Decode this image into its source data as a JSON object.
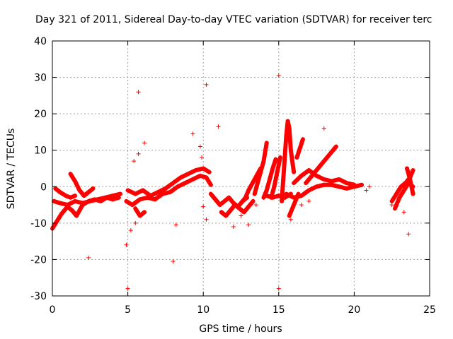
{
  "chart_data": {
    "type": "scatter",
    "title": "Day 321 of 2011, Sidereal Day-to-day VTEC variation (SDTVAR) for receiver terc",
    "xlabel": "GPS time / hours",
    "ylabel": "SDTVAR / TECUs",
    "xlim": [
      0,
      25
    ],
    "ylim": [
      -30,
      40
    ],
    "x_ticks": [
      "0",
      "5",
      "10",
      "15",
      "20",
      "25"
    ],
    "y_ticks": [
      "-30",
      "-20",
      "-10",
      "0",
      "10",
      "20",
      "30",
      "40"
    ],
    "grid": true,
    "marker": "+",
    "color": "#ff0000",
    "series": [
      {
        "name": "SDTVAR",
        "segments": [
          {
            "x": [
              0.0,
              0.3,
              0.6,
              1.0,
              1.3,
              1.6,
              2.0,
              2.4,
              2.8,
              3.2,
              3.6,
              4.0,
              4.4
            ],
            "y": [
              -11.5,
              -9.5,
              -7.5,
              -5.5,
              -6.5,
              -8.0,
              -5.0,
              -4.0,
              -3.5,
              -4.0,
              -3.0,
              -3.5,
              -3.0
            ]
          },
          {
            "x": [
              0.1,
              0.5,
              1.0,
              1.5,
              2.0,
              2.5,
              3.0,
              3.5,
              4.0,
              4.5
            ],
            "y": [
              -4.0,
              -4.5,
              -5.0,
              -4.0,
              -4.5,
              -4.0,
              -3.5,
              -3.0,
              -2.5,
              -2.0
            ]
          },
          {
            "x": [
              1.2,
              1.5,
              1.8,
              2.1,
              2.4,
              2.7
            ],
            "y": [
              3.5,
              1.5,
              -1.0,
              -2.5,
              -1.5,
              -0.5
            ]
          },
          {
            "x": [
              0.2,
              0.5,
              0.9,
              1.2,
              1.5
            ],
            "y": [
              -0.5,
              -1.5,
              -2.5,
              -3.0,
              -2.5
            ]
          },
          {
            "x": [
              4.9,
              5.3,
              5.8,
              6.3,
              6.8,
              7.3,
              7.8,
              8.3,
              8.8,
              9.3,
              9.8,
              10.2,
              10.5
            ],
            "y": [
              -4.0,
              -5.0,
              -3.5,
              -3.0,
              -3.5,
              -2.0,
              -1.5,
              0.0,
              1.0,
              2.0,
              3.0,
              2.5,
              0.5
            ]
          },
          {
            "x": [
              5.0,
              5.5,
              6.0,
              6.5,
              7.0,
              7.5,
              8.0,
              8.5,
              9.0,
              9.5,
              10.0,
              10.4
            ],
            "y": [
              -1.0,
              -2.0,
              -1.0,
              -2.5,
              -1.5,
              -0.5,
              1.0,
              2.5,
              3.5,
              4.5,
              5.0,
              4.0
            ]
          },
          {
            "x": [
              5.5,
              5.8,
              6.1
            ],
            "y": [
              -6.0,
              -8.0,
              -7.0
            ]
          },
          {
            "x": [
              10.5,
              10.8,
              11.1,
              11.4,
              11.7,
              12.0,
              12.3,
              12.6,
              12.9
            ],
            "y": [
              -2.0,
              -3.5,
              -5.0,
              -4.0,
              -3.0,
              -4.5,
              -5.5,
              -4.0,
              -3.0
            ]
          },
          {
            "x": [
              11.2,
              11.5,
              11.8,
              12.1,
              12.4,
              12.7,
              13.0,
              13.3
            ],
            "y": [
              -7.0,
              -8.0,
              -6.5,
              -5.0,
              -6.0,
              -7.0,
              -5.5,
              -4.0
            ]
          },
          {
            "x": [
              12.6,
              12.8,
              13.0,
              13.2,
              13.4,
              13.6,
              13.8
            ],
            "y": [
              -4.0,
              -3.0,
              -1.0,
              0.5,
              2.0,
              3.5,
              5.0
            ]
          },
          {
            "x": [
              13.4,
              13.6,
              13.8,
              14.0,
              14.1,
              14.2
            ],
            "y": [
              -2.0,
              1.0,
              4.0,
              7.0,
              9.5,
              12.0
            ]
          },
          {
            "x": [
              14.0,
              14.2,
              14.4,
              14.6,
              14.8
            ],
            "y": [
              -3.0,
              -1.0,
              2.0,
              5.0,
              7.5
            ]
          },
          {
            "x": [
              14.5,
              14.7,
              14.9,
              15.1
            ],
            "y": [
              -3.0,
              0.0,
              4.0,
              8.0
            ]
          },
          {
            "x": [
              15.2,
              15.3,
              15.4,
              15.5,
              15.6,
              15.7,
              15.8,
              16.0
            ],
            "y": [
              -4.0,
              2.0,
              8.0,
              14.0,
              18.0,
              16.0,
              10.0,
              4.0
            ]
          },
          {
            "x": [
              15.7,
              15.9,
              16.1,
              16.3
            ],
            "y": [
              -8.0,
              -6.0,
              -4.0,
              -2.0
            ]
          },
          {
            "x": [
              15.5,
              16.0,
              16.5,
              17.0,
              17.5,
              18.0,
              18.5,
              19.0,
              19.5,
              20.0,
              20.5
            ],
            "y": [
              -2.0,
              -3.0,
              -2.5,
              -1.0,
              0.0,
              0.5,
              0.5,
              0.0,
              -0.5,
              0.0,
              0.5
            ]
          },
          {
            "x": [
              16.0,
              16.5,
              17.0,
              17.5,
              18.0,
              18.5,
              19.0,
              19.5,
              20.0
            ],
            "y": [
              1.0,
              3.0,
              4.5,
              3.0,
              2.0,
              1.5,
              2.0,
              1.0,
              0.5
            ]
          },
          {
            "x": [
              16.2,
              16.4,
              16.6
            ],
            "y": [
              8.0,
              10.5,
              13.0
            ]
          },
          {
            "x": [
              16.8,
              17.2,
              17.6,
              18.0,
              18.4,
              18.8
            ],
            "y": [
              1.0,
              3.0,
              5.0,
              7.0,
              9.0,
              11.0
            ]
          },
          {
            "x": [
              14.2,
              14.6,
              15.0,
              15.4,
              15.8
            ],
            "y": [
              -2.5,
              -3.0,
              -2.5,
              -3.0,
              -2.0
            ]
          },
          {
            "x": [
              22.5,
              22.8,
              23.1,
              23.4,
              23.7,
              23.9
            ],
            "y": [
              -4.0,
              -2.0,
              0.0,
              1.0,
              2.5,
              4.5
            ]
          },
          {
            "x": [
              22.7,
              23.0,
              23.3,
              23.6,
              23.9
            ],
            "y": [
              -6.0,
              -3.0,
              -1.0,
              1.0,
              0.0
            ]
          },
          {
            "x": [
              23.5,
              23.7,
              23.9
            ],
            "y": [
              5.0,
              2.0,
              -2.0
            ]
          }
        ],
        "points_x": [
          2.4,
          8.0,
          5.0,
          5.4,
          5.7,
          5.7,
          6.1,
          4.9,
          5.5,
          9.3,
          10.2,
          10.2,
          9.8,
          15.0,
          15.0,
          10.0,
          18.0,
          11.0,
          12.0,
          12.5,
          13.0,
          13.5,
          8.2,
          5.2,
          23.6,
          22.5,
          21.0,
          20.8,
          23.3,
          16.5,
          17.0,
          9.9,
          15.8,
          11.5
        ],
        "points_y": [
          -19.5,
          -20.5,
          -28.0,
          7.0,
          26.0,
          9.0,
          12.0,
          -16.0,
          -10.0,
          14.5,
          28.0,
          -9.0,
          11.0,
          30.5,
          -28.0,
          -5.5,
          16.0,
          16.5,
          -11.0,
          -8.0,
          -10.5,
          -5.0,
          -10.5,
          -12.0,
          -13.0,
          -5.0,
          0.0,
          -1.0,
          -7.0,
          -5.0,
          -4.0,
          8.0,
          -9.0,
          -8.0
        ]
      }
    ]
  }
}
